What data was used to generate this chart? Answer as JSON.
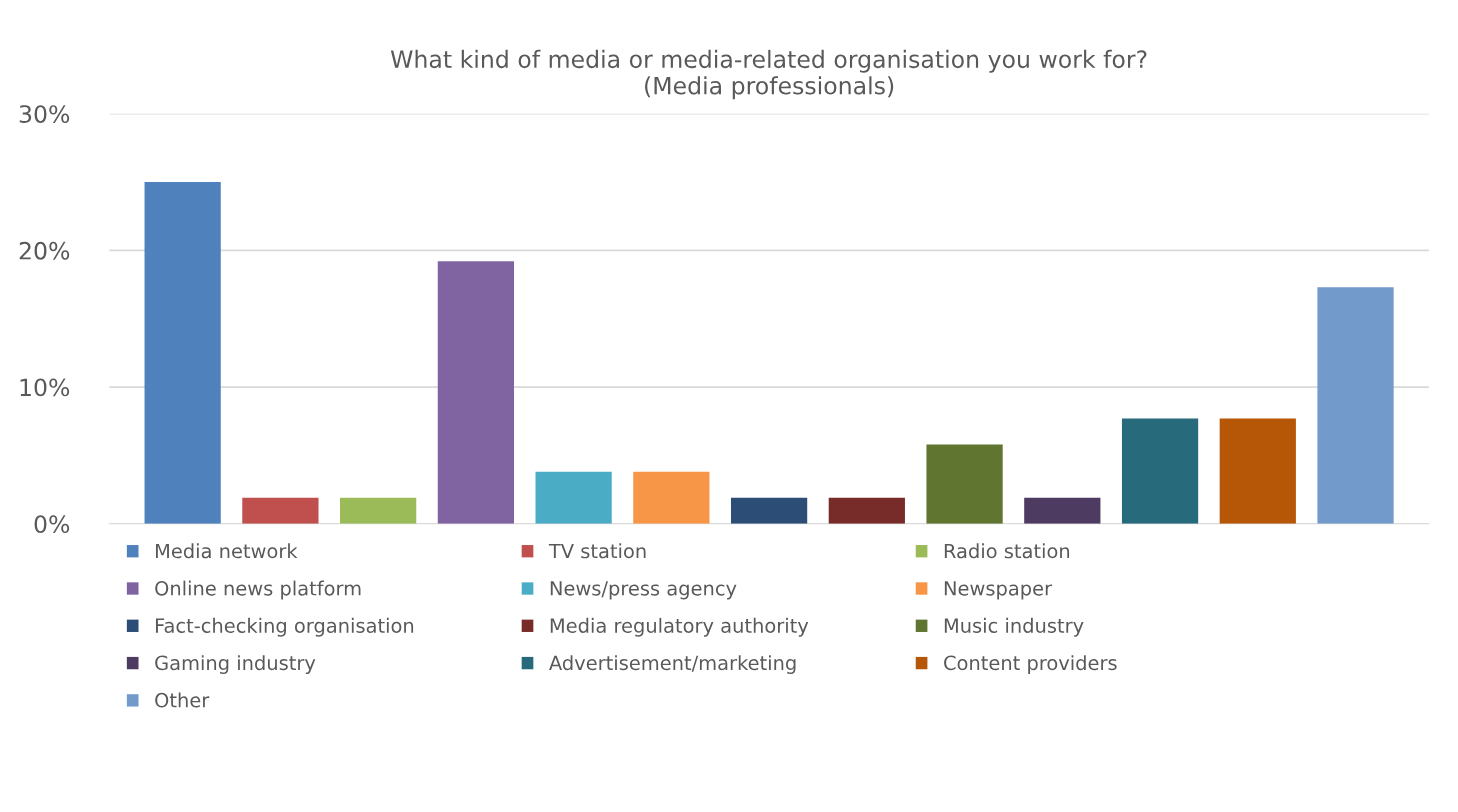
{
  "chart_data": {
    "type": "bar",
    "title": "What kind of media or media-related organisation you work for?\n(Media professionals)",
    "categories": [
      null,
      null,
      null,
      null,
      null,
      null,
      null,
      null,
      null,
      null,
      null,
      null,
      null
    ],
    "series": [
      {
        "name": "Media network",
        "color": "#4f81bd",
        "values": [
          25,
          null,
          null,
          null,
          null,
          null,
          null,
          null,
          null,
          null,
          null,
          null,
          null
        ]
      },
      {
        "name": "TV station",
        "color": "#c0504d",
        "values": [
          null,
          1.9,
          null,
          null,
          null,
          null,
          null,
          null,
          null,
          null,
          null,
          null,
          null
        ]
      },
      {
        "name": "Radio station",
        "color": "#9bbb59",
        "values": [
          null,
          null,
          1.9,
          null,
          null,
          null,
          null,
          null,
          null,
          null,
          null,
          null,
          null
        ]
      },
      {
        "name": "Online news platform",
        "color": "#8064a2",
        "values": [
          null,
          null,
          null,
          19.2,
          null,
          null,
          null,
          null,
          null,
          null,
          null,
          null,
          null
        ]
      },
      {
        "name": "News/press agency",
        "color": "#4bacc6",
        "values": [
          null,
          null,
          null,
          null,
          3.8,
          null,
          null,
          null,
          null,
          null,
          null,
          null,
          null
        ]
      },
      {
        "name": "Newspaper",
        "color": "#f79646",
        "values": [
          null,
          null,
          null,
          null,
          null,
          3.8,
          null,
          null,
          null,
          null,
          null,
          null,
          null
        ]
      },
      {
        "name": "Fact-checking organisation",
        "color": "#2c4d75",
        "values": [
          null,
          null,
          null,
          null,
          null,
          null,
          1.9,
          null,
          null,
          null,
          null,
          null,
          null
        ]
      },
      {
        "name": "Media regulatory authority",
        "color": "#772c2a",
        "values": [
          null,
          null,
          null,
          null,
          null,
          null,
          null,
          1.9,
          null,
          null,
          null,
          null,
          null
        ]
      },
      {
        "name": "Music industry",
        "color": "#5f7530",
        "values": [
          null,
          null,
          null,
          null,
          null,
          null,
          null,
          null,
          5.8,
          null,
          null,
          null,
          null
        ]
      },
      {
        "name": "Gaming industry",
        "color": "#4d3b62",
        "values": [
          null,
          null,
          null,
          null,
          null,
          null,
          null,
          null,
          null,
          1.9,
          null,
          null,
          null
        ]
      },
      {
        "name": "Advertisement/marketing",
        "color": "#276a7c",
        "values": [
          null,
          null,
          null,
          null,
          null,
          null,
          null,
          null,
          null,
          null,
          7.7,
          null,
          null
        ]
      },
      {
        "name": "Content providers",
        "color": "#b65708",
        "values": [
          null,
          null,
          null,
          null,
          null,
          null,
          null,
          null,
          null,
          null,
          null,
          7.7,
          null
        ]
      },
      {
        "name": "Other",
        "color": "#729aca",
        "values": [
          null,
          null,
          null,
          null,
          null,
          null,
          null,
          null,
          null,
          null,
          null,
          null,
          17.3
        ]
      }
    ],
    "ylim": [
      0,
      30
    ],
    "yticks": [
      {
        "value": 0,
        "label": "0%"
      },
      {
        "value": 10,
        "label": "10%"
      },
      {
        "value": 20,
        "label": "20%"
      },
      {
        "value": 30,
        "label": "30%"
      }
    ],
    "grid": "y",
    "legend": "bottom",
    "tick_labels": "y"
  }
}
